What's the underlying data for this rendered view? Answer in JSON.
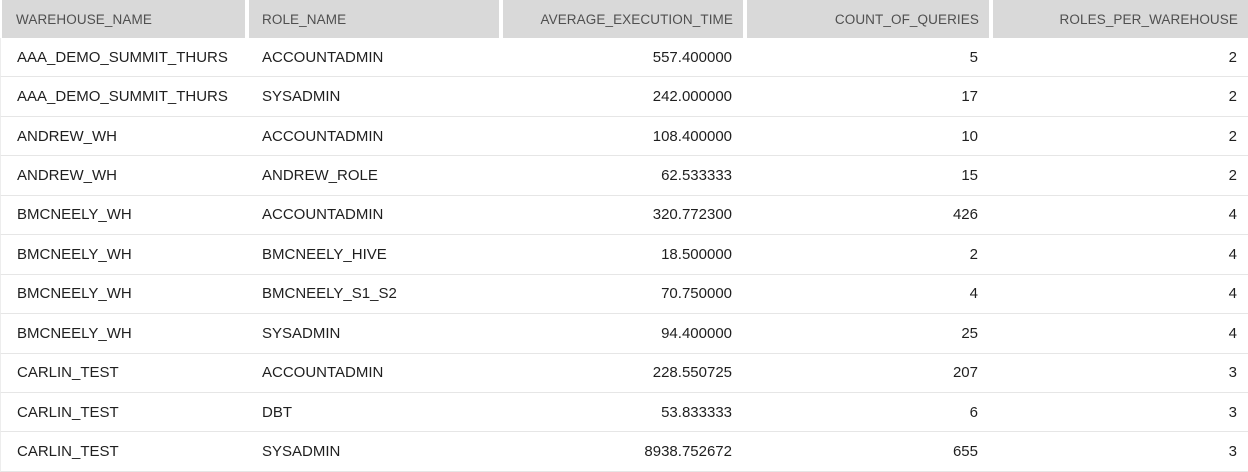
{
  "table": {
    "columns": [
      {
        "id": "warehouse_name",
        "label": "WAREHOUSE_NAME",
        "align": "left"
      },
      {
        "id": "role_name",
        "label": "ROLE_NAME",
        "align": "left"
      },
      {
        "id": "average_execution_time",
        "label": "AVERAGE_EXECUTION_TIME",
        "align": "right"
      },
      {
        "id": "count_of_queries",
        "label": "COUNT_OF_QUERIES",
        "align": "right"
      },
      {
        "id": "roles_per_warehouse",
        "label": "ROLES_PER_WAREHOUSE",
        "align": "right"
      }
    ],
    "rows": [
      [
        "AAA_DEMO_SUMMIT_THURS",
        "ACCOUNTADMIN",
        "557.400000",
        "5",
        "2"
      ],
      [
        "AAA_DEMO_SUMMIT_THURS",
        "SYSADMIN",
        "242.000000",
        "17",
        "2"
      ],
      [
        "ANDREW_WH",
        "ACCOUNTADMIN",
        "108.400000",
        "10",
        "2"
      ],
      [
        "ANDREW_WH",
        "ANDREW_ROLE",
        "62.533333",
        "15",
        "2"
      ],
      [
        "BMCNEELY_WH",
        "ACCOUNTADMIN",
        "320.772300",
        "426",
        "4"
      ],
      [
        "BMCNEELY_WH",
        "BMCNEELY_HIVE",
        "18.500000",
        "2",
        "4"
      ],
      [
        "BMCNEELY_WH",
        "BMCNEELY_S1_S2",
        "70.750000",
        "4",
        "4"
      ],
      [
        "BMCNEELY_WH",
        "SYSADMIN",
        "94.400000",
        "25",
        "4"
      ],
      [
        "CARLIN_TEST",
        "ACCOUNTADMIN",
        "228.550725",
        "207",
        "3"
      ],
      [
        "CARLIN_TEST",
        "DBT",
        "53.833333",
        "6",
        "3"
      ],
      [
        "CARLIN_TEST",
        "SYSADMIN",
        "8938.752672",
        "655",
        "3"
      ]
    ]
  },
  "colors": {
    "header_bg": "#d9d9d9",
    "header_text": "#4f4f4f",
    "cell_text": "#1f1f1f",
    "row_border": "#e6e6e6",
    "background": "#ffffff"
  }
}
